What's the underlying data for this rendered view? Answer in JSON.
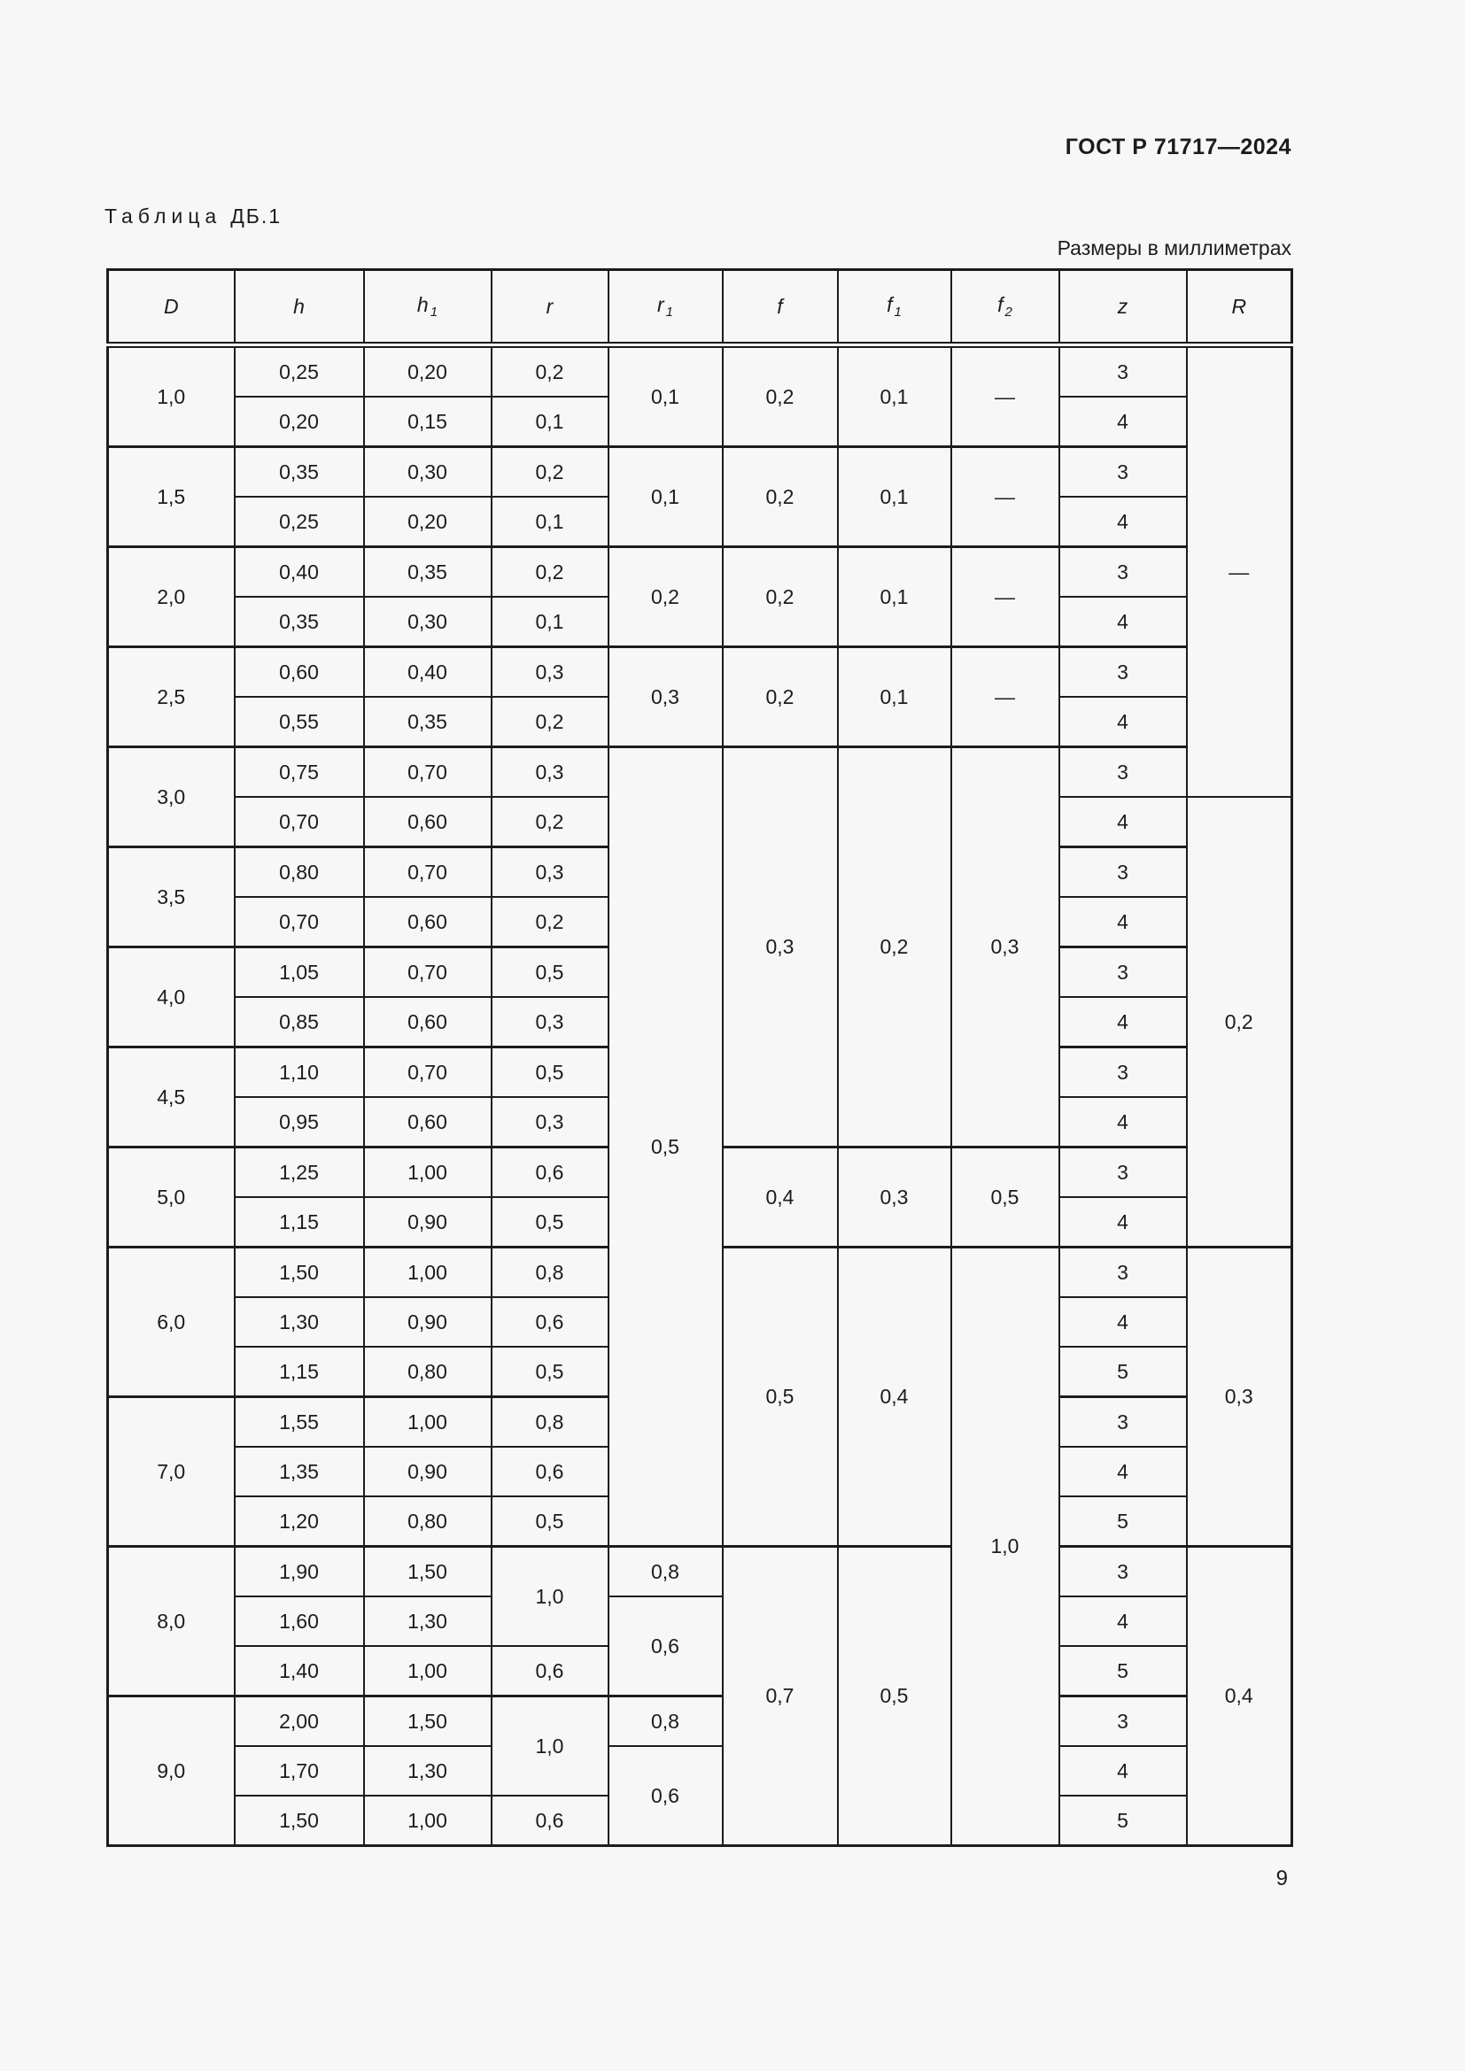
{
  "page": {
    "doc_number": "ГОСТ Р 71717—2024",
    "caption_word": "Таблица",
    "caption_number": "ДБ.1",
    "units_note": "Размеры в миллиметрах",
    "page_number": "9"
  },
  "table": {
    "columns": [
      {
        "key": "D",
        "base": "D",
        "sub": ""
      },
      {
        "key": "h",
        "base": "h",
        "sub": ""
      },
      {
        "key": "h1",
        "base": "h",
        "sub": "1"
      },
      {
        "key": "r",
        "base": "r",
        "sub": ""
      },
      {
        "key": "r1",
        "base": "r",
        "sub": "1"
      },
      {
        "key": "f",
        "base": "f",
        "sub": ""
      },
      {
        "key": "f1",
        "base": "f",
        "sub": "1"
      },
      {
        "key": "f2",
        "base": "f",
        "sub": "2"
      },
      {
        "key": "z",
        "base": "z",
        "sub": ""
      },
      {
        "key": "R",
        "base": "R",
        "sub": ""
      }
    ],
    "rows": [
      {
        "group": true,
        "cells": [
          {
            "col": "D",
            "v": "1,0",
            "rs": 2
          },
          {
            "col": "h",
            "v": "0,25"
          },
          {
            "col": "h1",
            "v": "0,20"
          },
          {
            "col": "r",
            "v": "0,2"
          },
          {
            "col": "r1",
            "v": "0,1",
            "rs": 2
          },
          {
            "col": "f",
            "v": "0,2",
            "rs": 2
          },
          {
            "col": "f1",
            "v": "0,1",
            "rs": 2
          },
          {
            "col": "f2",
            "v": "—",
            "rs": 2
          },
          {
            "col": "z",
            "v": "3"
          },
          {
            "col": "R",
            "v": "—",
            "rs": 9
          }
        ]
      },
      {
        "group": false,
        "cells": [
          {
            "col": "h",
            "v": "0,20"
          },
          {
            "col": "h1",
            "v": "0,15"
          },
          {
            "col": "r",
            "v": "0,1"
          },
          {
            "col": "z",
            "v": "4"
          }
        ]
      },
      {
        "group": true,
        "cells": [
          {
            "col": "D",
            "v": "1,5",
            "rs": 2
          },
          {
            "col": "h",
            "v": "0,35"
          },
          {
            "col": "h1",
            "v": "0,30"
          },
          {
            "col": "r",
            "v": "0,2"
          },
          {
            "col": "r1",
            "v": "0,1",
            "rs": 2
          },
          {
            "col": "f",
            "v": "0,2",
            "rs": 2
          },
          {
            "col": "f1",
            "v": "0,1",
            "rs": 2
          },
          {
            "col": "f2",
            "v": "—",
            "rs": 2
          },
          {
            "col": "z",
            "v": "3"
          }
        ]
      },
      {
        "group": false,
        "cells": [
          {
            "col": "h",
            "v": "0,25"
          },
          {
            "col": "h1",
            "v": "0,20"
          },
          {
            "col": "r",
            "v": "0,1"
          },
          {
            "col": "z",
            "v": "4"
          }
        ]
      },
      {
        "group": true,
        "cells": [
          {
            "col": "D",
            "v": "2,0",
            "rs": 2
          },
          {
            "col": "h",
            "v": "0,40"
          },
          {
            "col": "h1",
            "v": "0,35"
          },
          {
            "col": "r",
            "v": "0,2"
          },
          {
            "col": "r1",
            "v": "0,2",
            "rs": 2
          },
          {
            "col": "f",
            "v": "0,2",
            "rs": 2
          },
          {
            "col": "f1",
            "v": "0,1",
            "rs": 2
          },
          {
            "col": "f2",
            "v": "—",
            "rs": 2
          },
          {
            "col": "z",
            "v": "3"
          }
        ]
      },
      {
        "group": false,
        "cells": [
          {
            "col": "h",
            "v": "0,35"
          },
          {
            "col": "h1",
            "v": "0,30"
          },
          {
            "col": "r",
            "v": "0,1"
          },
          {
            "col": "z",
            "v": "4"
          }
        ]
      },
      {
        "group": true,
        "cells": [
          {
            "col": "D",
            "v": "2,5",
            "rs": 2
          },
          {
            "col": "h",
            "v": "0,60"
          },
          {
            "col": "h1",
            "v": "0,40"
          },
          {
            "col": "r",
            "v": "0,3"
          },
          {
            "col": "r1",
            "v": "0,3",
            "rs": 2
          },
          {
            "col": "f",
            "v": "0,2",
            "rs": 2
          },
          {
            "col": "f1",
            "v": "0,1",
            "rs": 2
          },
          {
            "col": "f2",
            "v": "—",
            "rs": 2
          },
          {
            "col": "z",
            "v": "3"
          }
        ]
      },
      {
        "group": false,
        "cells": [
          {
            "col": "h",
            "v": "0,55"
          },
          {
            "col": "h1",
            "v": "0,35"
          },
          {
            "col": "r",
            "v": "0,2"
          },
          {
            "col": "z",
            "v": "4"
          }
        ]
      },
      {
        "group": true,
        "cells": [
          {
            "col": "D",
            "v": "3,0",
            "rs": 2
          },
          {
            "col": "h",
            "v": "0,75"
          },
          {
            "col": "h1",
            "v": "0,70"
          },
          {
            "col": "r",
            "v": "0,3"
          },
          {
            "col": "r1",
            "v": "0,5",
            "rs": 16
          },
          {
            "col": "f",
            "v": "0,3",
            "rs": 8
          },
          {
            "col": "f1",
            "v": "0,2",
            "rs": 8
          },
          {
            "col": "f2",
            "v": "0,3",
            "rs": 8
          },
          {
            "col": "z",
            "v": "3"
          }
        ]
      },
      {
        "group": false,
        "cells": [
          {
            "col": "h",
            "v": "0,70"
          },
          {
            "col": "h1",
            "v": "0,60"
          },
          {
            "col": "r",
            "v": "0,2"
          },
          {
            "col": "z",
            "v": "4"
          },
          {
            "col": "R",
            "v": "0,2",
            "rs": 9
          }
        ]
      },
      {
        "group": true,
        "cells": [
          {
            "col": "D",
            "v": "3,5",
            "rs": 2
          },
          {
            "col": "h",
            "v": "0,80"
          },
          {
            "col": "h1",
            "v": "0,70"
          },
          {
            "col": "r",
            "v": "0,3"
          },
          {
            "col": "z",
            "v": "3"
          }
        ]
      },
      {
        "group": false,
        "cells": [
          {
            "col": "h",
            "v": "0,70"
          },
          {
            "col": "h1",
            "v": "0,60"
          },
          {
            "col": "r",
            "v": "0,2"
          },
          {
            "col": "z",
            "v": "4"
          }
        ]
      },
      {
        "group": true,
        "cells": [
          {
            "col": "D",
            "v": "4,0",
            "rs": 2
          },
          {
            "col": "h",
            "v": "1,05"
          },
          {
            "col": "h1",
            "v": "0,70"
          },
          {
            "col": "r",
            "v": "0,5"
          },
          {
            "col": "z",
            "v": "3"
          }
        ]
      },
      {
        "group": false,
        "cells": [
          {
            "col": "h",
            "v": "0,85"
          },
          {
            "col": "h1",
            "v": "0,60"
          },
          {
            "col": "r",
            "v": "0,3"
          },
          {
            "col": "z",
            "v": "4"
          }
        ]
      },
      {
        "group": true,
        "cells": [
          {
            "col": "D",
            "v": "4,5",
            "rs": 2
          },
          {
            "col": "h",
            "v": "1,10"
          },
          {
            "col": "h1",
            "v": "0,70"
          },
          {
            "col": "r",
            "v": "0,5"
          },
          {
            "col": "z",
            "v": "3"
          }
        ]
      },
      {
        "group": false,
        "cells": [
          {
            "col": "h",
            "v": "0,95"
          },
          {
            "col": "h1",
            "v": "0,60"
          },
          {
            "col": "r",
            "v": "0,3"
          },
          {
            "col": "z",
            "v": "4"
          }
        ]
      },
      {
        "group": true,
        "cells": [
          {
            "col": "D",
            "v": "5,0",
            "rs": 2
          },
          {
            "col": "h",
            "v": "1,25"
          },
          {
            "col": "h1",
            "v": "1,00"
          },
          {
            "col": "r",
            "v": "0,6"
          },
          {
            "col": "f",
            "v": "0,4",
            "rs": 2
          },
          {
            "col": "f1",
            "v": "0,3",
            "rs": 2
          },
          {
            "col": "f2",
            "v": "0,5",
            "rs": 2
          },
          {
            "col": "z",
            "v": "3"
          }
        ]
      },
      {
        "group": false,
        "cells": [
          {
            "col": "h",
            "v": "1,15"
          },
          {
            "col": "h1",
            "v": "0,90"
          },
          {
            "col": "r",
            "v": "0,5"
          },
          {
            "col": "z",
            "v": "4"
          }
        ]
      },
      {
        "group": true,
        "cells": [
          {
            "col": "D",
            "v": "6,0",
            "rs": 3
          },
          {
            "col": "h",
            "v": "1,50"
          },
          {
            "col": "h1",
            "v": "1,00"
          },
          {
            "col": "r",
            "v": "0,8"
          },
          {
            "col": "f",
            "v": "0,5",
            "rs": 6
          },
          {
            "col": "f1",
            "v": "0,4",
            "rs": 6
          },
          {
            "col": "f2",
            "v": "1,0",
            "rs": 12
          },
          {
            "col": "z",
            "v": "3"
          },
          {
            "col": "R",
            "v": "0,3",
            "rs": 6
          }
        ]
      },
      {
        "group": false,
        "cells": [
          {
            "col": "h",
            "v": "1,30"
          },
          {
            "col": "h1",
            "v": "0,90"
          },
          {
            "col": "r",
            "v": "0,6"
          },
          {
            "col": "z",
            "v": "4"
          }
        ]
      },
      {
        "group": false,
        "cells": [
          {
            "col": "h",
            "v": "1,15"
          },
          {
            "col": "h1",
            "v": "0,80"
          },
          {
            "col": "r",
            "v": "0,5"
          },
          {
            "col": "z",
            "v": "5"
          }
        ]
      },
      {
        "group": true,
        "cells": [
          {
            "col": "D",
            "v": "7,0",
            "rs": 3
          },
          {
            "col": "h",
            "v": "1,55"
          },
          {
            "col": "h1",
            "v": "1,00"
          },
          {
            "col": "r",
            "v": "0,8"
          },
          {
            "col": "z",
            "v": "3"
          }
        ]
      },
      {
        "group": false,
        "cells": [
          {
            "col": "h",
            "v": "1,35"
          },
          {
            "col": "h1",
            "v": "0,90"
          },
          {
            "col": "r",
            "v": "0,6"
          },
          {
            "col": "z",
            "v": "4"
          }
        ]
      },
      {
        "group": false,
        "cells": [
          {
            "col": "h",
            "v": "1,20"
          },
          {
            "col": "h1",
            "v": "0,80"
          },
          {
            "col": "r",
            "v": "0,5"
          },
          {
            "col": "z",
            "v": "5"
          }
        ]
      },
      {
        "group": true,
        "cells": [
          {
            "col": "D",
            "v": "8,0",
            "rs": 3
          },
          {
            "col": "h",
            "v": "1,90"
          },
          {
            "col": "h1",
            "v": "1,50"
          },
          {
            "col": "r",
            "v": "1,0",
            "rs": 2
          },
          {
            "col": "r1",
            "v": "0,8"
          },
          {
            "col": "f",
            "v": "0,7",
            "rs": 6
          },
          {
            "col": "f1",
            "v": "0,5",
            "rs": 6
          },
          {
            "col": "z",
            "v": "3"
          },
          {
            "col": "R",
            "v": "0,4",
            "rs": 6
          }
        ]
      },
      {
        "group": false,
        "cells": [
          {
            "col": "h",
            "v": "1,60"
          },
          {
            "col": "h1",
            "v": "1,30"
          },
          {
            "col": "r1",
            "v": "0,6",
            "rs": 2
          },
          {
            "col": "z",
            "v": "4"
          }
        ]
      },
      {
        "group": false,
        "cells": [
          {
            "col": "h",
            "v": "1,40"
          },
          {
            "col": "h1",
            "v": "1,00"
          },
          {
            "col": "r",
            "v": "0,6"
          },
          {
            "col": "z",
            "v": "5"
          }
        ]
      },
      {
        "group": true,
        "cells": [
          {
            "col": "D",
            "v": "9,0",
            "rs": 3
          },
          {
            "col": "h",
            "v": "2,00"
          },
          {
            "col": "h1",
            "v": "1,50"
          },
          {
            "col": "r",
            "v": "1,0",
            "rs": 2
          },
          {
            "col": "r1",
            "v": "0,8"
          },
          {
            "col": "z",
            "v": "3"
          }
        ]
      },
      {
        "group": false,
        "cells": [
          {
            "col": "h",
            "v": "1,70"
          },
          {
            "col": "h1",
            "v": "1,30"
          },
          {
            "col": "r1",
            "v": "0,6",
            "rs": 2
          },
          {
            "col": "z",
            "v": "4"
          }
        ]
      },
      {
        "group": false,
        "cells": [
          {
            "col": "h",
            "v": "1,50"
          },
          {
            "col": "h1",
            "v": "1,00"
          },
          {
            "col": "r",
            "v": "0,6"
          },
          {
            "col": "z",
            "v": "5"
          }
        ]
      }
    ]
  }
}
